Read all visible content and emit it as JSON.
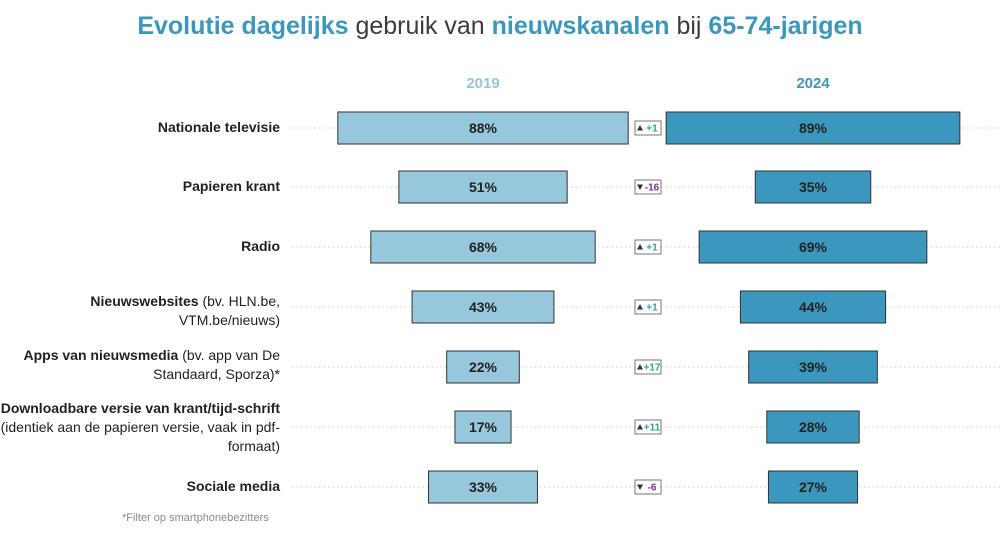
{
  "title": {
    "part1": "Evolutie dagelijks",
    "part2": " gebruik van ",
    "part3": "nieuwskanalen",
    "part4": " bij ",
    "part5": "65-74-jarigen"
  },
  "footnote": "*Filter op smartphonebezitters",
  "colors": {
    "bar_2019": "#96c7dc",
    "bar_2024": "#3b97bd",
    "year_2019": "#96c7dc",
    "year_2024": "#3b97bd",
    "up": "#2aa3a1",
    "down": "#8c2a8a",
    "border": "#333333"
  },
  "chart_data": {
    "type": "bar",
    "title": "Evolutie dagelijks gebruik van nieuwskanalen bij 65-74-jarigen",
    "series": [
      {
        "name": "2019",
        "values": [
          88,
          51,
          68,
          43,
          22,
          17,
          33
        ]
      },
      {
        "name": "2024",
        "values": [
          89,
          35,
          69,
          44,
          39,
          28,
          27
        ]
      }
    ],
    "value_labels": {
      "2019": [
        "88%",
        "51%",
        "68%",
        "43%",
        "22%",
        "17%",
        "33%"
      ],
      "2024": [
        "89%",
        "35%",
        "69%",
        "44%",
        "39%",
        "28%",
        "27%"
      ]
    },
    "deltas": [
      {
        "dir": "up",
        "text": "+1"
      },
      {
        "dir": "down",
        "text": "-16"
      },
      {
        "dir": "up",
        "text": "+1"
      },
      {
        "dir": "up",
        "text": "+1"
      },
      {
        "dir": "up",
        "text": "+17"
      },
      {
        "dir": "up",
        "text": "+11"
      },
      {
        "dir": "down",
        "text": "-6"
      }
    ],
    "categories": [
      {
        "bold": "Nationale televisie",
        "rest": ""
      },
      {
        "bold": "Papieren krant",
        "rest": ""
      },
      {
        "bold": "Radio",
        "rest": ""
      },
      {
        "bold": "Nieuwswebsites",
        "rest": " (bv. HLN.be, VTM.be/nieuws)"
      },
      {
        "bold": "Apps van nieuwsmedia",
        "rest": " (bv. app van De Standaard, Sporza)*"
      },
      {
        "bold": "Downloadbare versie van krant/tijd-schrift",
        "rest": " (identiek aan de papieren versie, vaak in pdf-formaat)"
      },
      {
        "bold": "Sociale media",
        "rest": ""
      }
    ],
    "xlim": [
      0,
      100
    ]
  }
}
